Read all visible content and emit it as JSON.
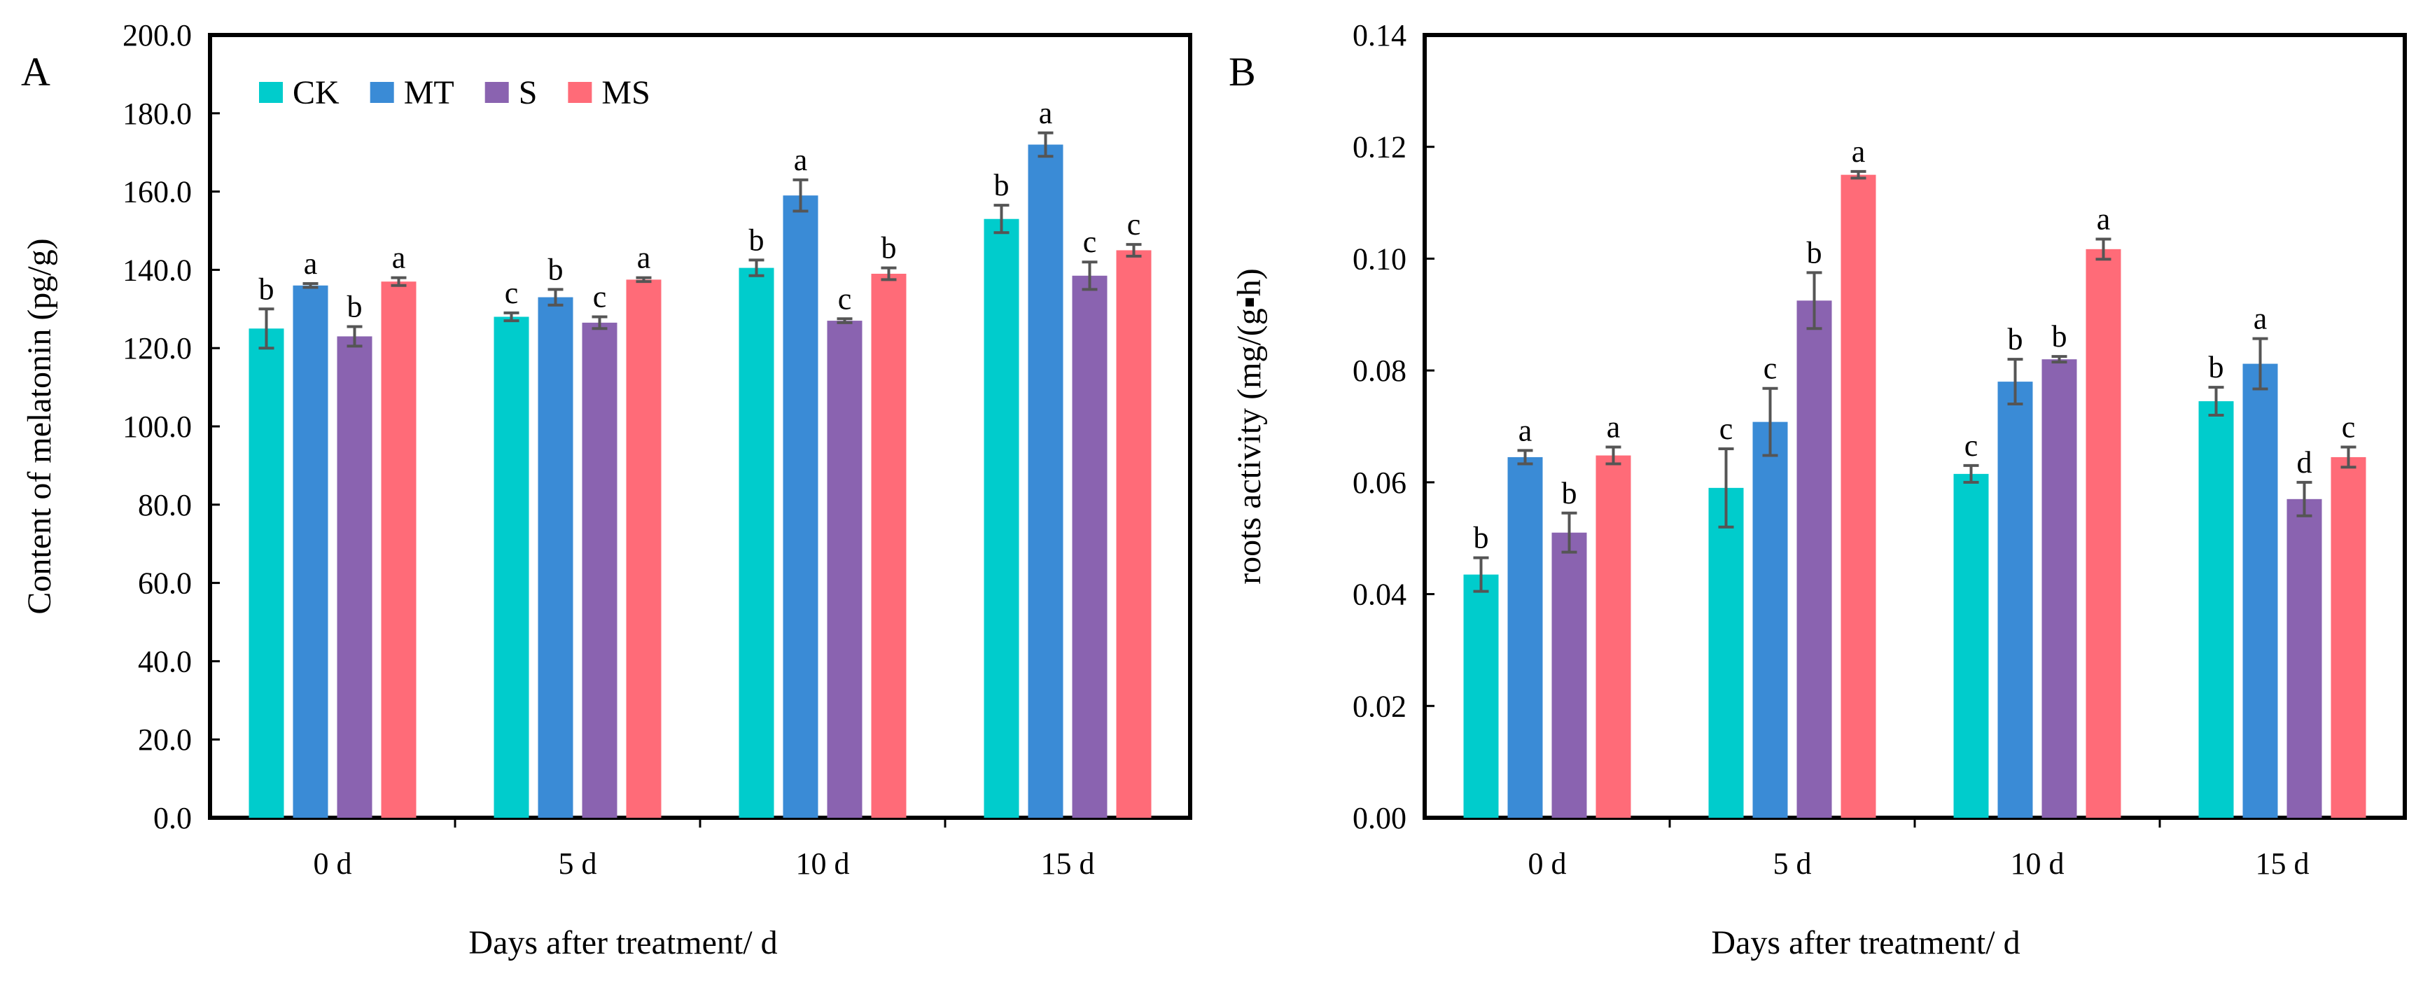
{
  "chart_data": [
    {
      "type": "bar",
      "panel": "A",
      "title": "",
      "xlabel": "Days after treatment/ d",
      "ylabel": "Content of melatonin  (pg/g)",
      "ylim": [
        0,
        200
      ],
      "yticks": [
        "0.0",
        "20.0",
        "40.0",
        "60.0",
        "80.0",
        "100.0",
        "120.0",
        "140.0",
        "160.0",
        "180.0",
        "200.0"
      ],
      "categories": [
        "0 d",
        "5 d",
        "10 d",
        "15 d"
      ],
      "legend_position": "top-left",
      "series": [
        {
          "name": "CK",
          "color": "#00CCCC",
          "values": [
            125,
            128,
            140.5,
            153
          ],
          "errors": [
            5,
            1,
            2,
            3.5
          ],
          "letters": [
            "b",
            "c",
            "b",
            "b"
          ]
        },
        {
          "name": "MT",
          "color": "#3A8BD6",
          "values": [
            136,
            133,
            159,
            172
          ],
          "errors": [
            0.5,
            2,
            4,
            3
          ],
          "letters": [
            "a",
            "b",
            "a",
            "a"
          ]
        },
        {
          "name": "S",
          "color": "#8A63B0",
          "values": [
            123,
            126.5,
            127,
            138.5
          ],
          "errors": [
            2.5,
            1.5,
            0.5,
            3.5
          ],
          "letters": [
            "b",
            "c",
            "c",
            "c"
          ]
        },
        {
          "name": "MS",
          "color": "#FF6B78",
          "values": [
            137,
            137.5,
            139,
            145
          ],
          "errors": [
            1,
            0.5,
            1.5,
            1.5
          ],
          "letters": [
            "a",
            "a",
            "b",
            "c"
          ]
        }
      ]
    },
    {
      "type": "bar",
      "panel": "B",
      "title": "",
      "xlabel": "Days after treatment/ d",
      "ylabel": "roots activity  (mg/(g▪h)",
      "ylim": [
        0,
        0.14
      ],
      "yticks": [
        "0.00",
        "0.02",
        "0.04",
        "0.06",
        "0.08",
        "0.10",
        "0.12",
        "0.14"
      ],
      "categories": [
        "0 d",
        "5 d",
        "10 d",
        "15 d"
      ],
      "legend_position": "none",
      "series": [
        {
          "name": "CK",
          "color": "#00CCCC",
          "values": [
            0.0435,
            0.059,
            0.0615,
            0.0745
          ],
          "errors": [
            0.003,
            0.007,
            0.0015,
            0.0025
          ],
          "letters": [
            "b",
            "c",
            "c",
            "b"
          ]
        },
        {
          "name": "MT",
          "color": "#3A8BD6",
          "values": [
            0.0645,
            0.0708,
            0.078,
            0.0812
          ],
          "errors": [
            0.0012,
            0.006,
            0.004,
            0.0045
          ],
          "letters": [
            "a",
            "c",
            "b",
            "a"
          ]
        },
        {
          "name": "S",
          "color": "#8A63B0",
          "values": [
            0.051,
            0.0925,
            0.082,
            0.057
          ],
          "errors": [
            0.0035,
            0.005,
            0.0005,
            0.003
          ],
          "letters": [
            "b",
            "b",
            "b",
            "d"
          ]
        },
        {
          "name": "MS",
          "color": "#FF6B78",
          "values": [
            0.0648,
            0.115,
            0.1017,
            0.0645
          ],
          "errors": [
            0.0015,
            0.0006,
            0.0018,
            0.0018
          ],
          "letters": [
            "a",
            "a",
            "a",
            "c"
          ]
        }
      ]
    }
  ]
}
